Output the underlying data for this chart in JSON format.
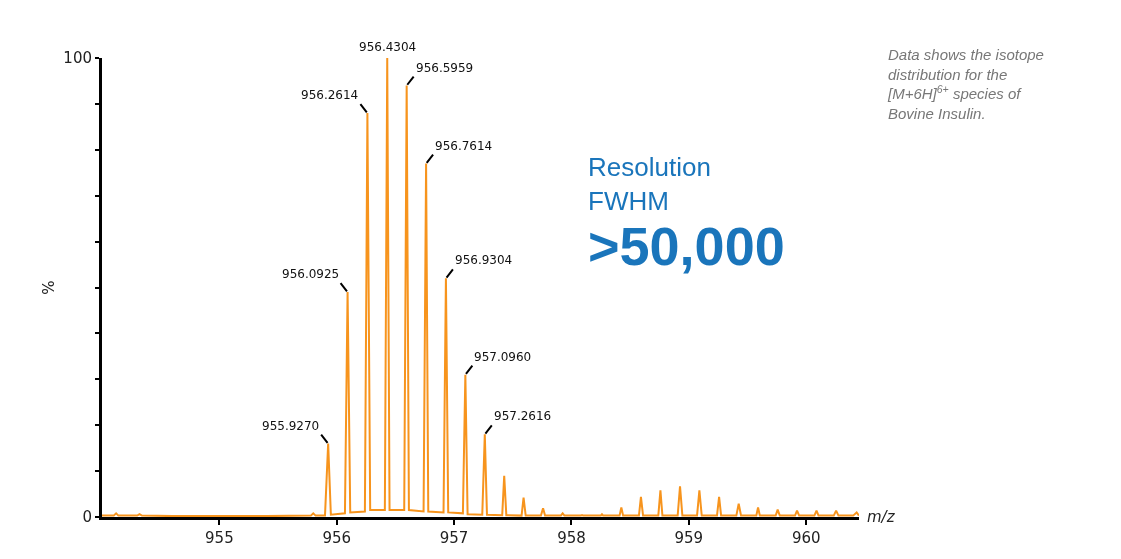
{
  "chart_data": {
    "type": "line",
    "xlabel": "m/z",
    "ylabel": "%",
    "xlim": [
      954,
      960.45
    ],
    "xticks": [
      955,
      956,
      957,
      958,
      959,
      960
    ],
    "ylim": [
      0,
      100
    ],
    "yticks": [
      0,
      {
        "value": 10,
        "label": null
      },
      {
        "value": 20,
        "label": null
      },
      {
        "value": 30,
        "label": null
      },
      {
        "value": 40,
        "label": null
      },
      {
        "value": 50,
        "label": null
      },
      {
        "value": 60,
        "label": null
      },
      {
        "value": 70,
        "label": null
      },
      {
        "value": 80,
        "label": null
      },
      {
        "value": 90,
        "label": null
      },
      100
    ],
    "marker": "none",
    "line_style": "solid",
    "series": [
      {
        "color": "#f7941d",
        "x": [
          954.0,
          954.1,
          954.12,
          954.14,
          954.3,
          954.32,
          954.34,
          954.6,
          955.0,
          955.4,
          955.78,
          955.8,
          955.82,
          955.9,
          955.927,
          955.95,
          956.07,
          956.0925,
          956.115,
          956.24,
          956.2614,
          956.285,
          956.41,
          956.4304,
          956.45,
          956.575,
          956.5959,
          956.615,
          956.74,
          956.7614,
          956.78,
          956.91,
          956.9304,
          956.95,
          957.075,
          957.096,
          957.115,
          957.24,
          957.2616,
          957.28,
          957.41,
          957.427,
          957.445,
          957.575,
          957.592,
          957.61,
          957.74,
          957.758,
          957.775,
          957.91,
          957.925,
          957.94,
          958.08,
          958.09,
          958.1,
          958.25,
          958.26,
          958.27,
          958.41,
          958.425,
          958.44,
          958.575,
          958.592,
          958.61,
          958.74,
          958.758,
          958.775,
          958.905,
          958.925,
          958.945,
          959.07,
          959.09,
          959.11,
          959.24,
          959.258,
          959.275,
          959.405,
          959.425,
          959.445,
          959.575,
          959.59,
          959.605,
          959.74,
          959.757,
          959.775,
          959.905,
          959.922,
          959.94,
          960.07,
          960.088,
          960.105,
          960.235,
          960.255,
          960.275,
          960.4,
          960.43,
          960.45
        ],
        "values": [
          0.3,
          0.3,
          0.8,
          0.3,
          0.3,
          0.6,
          0.3,
          0.2,
          0.2,
          0.2,
          0.3,
          0.8,
          0.3,
          0.3,
          16,
          0.5,
          0.8,
          49,
          1,
          1.2,
          88,
          1.5,
          1.5,
          100,
          1.5,
          1.5,
          94,
          1.5,
          1.2,
          77,
          1.2,
          1,
          52,
          1,
          0.8,
          31,
          0.6,
          0.5,
          18,
          0.5,
          0.4,
          9,
          0.4,
          0.3,
          4.2,
          0.3,
          0.3,
          1.9,
          0.3,
          0.3,
          0.8,
          0.3,
          0.3,
          0.4,
          0.3,
          0.3,
          0.6,
          0.3,
          0.3,
          2.1,
          0.3,
          0.3,
          4.4,
          0.3,
          0.3,
          5.8,
          0.3,
          0.3,
          6.7,
          0.3,
          0.3,
          5.8,
          0.3,
          0.3,
          4.4,
          0.3,
          0.3,
          2.9,
          0.3,
          0.3,
          2.1,
          0.3,
          0.3,
          1.6,
          0.3,
          0.3,
          1.4,
          0.3,
          0.3,
          1.4,
          0.3,
          0.3,
          1.4,
          0.3,
          0.3,
          1.0,
          0.3
        ]
      }
    ],
    "annotations": [
      {
        "text": "955.9270",
        "x": 955.927,
        "y": 16
      },
      {
        "text": "956.0925",
        "x": 956.0925,
        "y": 49
      },
      {
        "text": "956.2614",
        "x": 956.2614,
        "y": 88
      },
      {
        "text": "956.4304",
        "x": 956.4304,
        "y": 100
      },
      {
        "text": "956.5959",
        "x": 956.5959,
        "y": 94
      },
      {
        "text": "956.7614",
        "x": 956.7614,
        "y": 77
      },
      {
        "text": "956.9304",
        "x": 956.9304,
        "y": 52
      },
      {
        "text": "957.0960",
        "x": 957.096,
        "y": 31
      },
      {
        "text": "957.2616",
        "x": 957.2616,
        "y": 18
      },
      "Data shows the isotope distribution for the [M+6H]$^{6+}$ species of Bovine Insulin.",
      "Resolution FWHM",
      ">50,000"
    ]
  }
}
